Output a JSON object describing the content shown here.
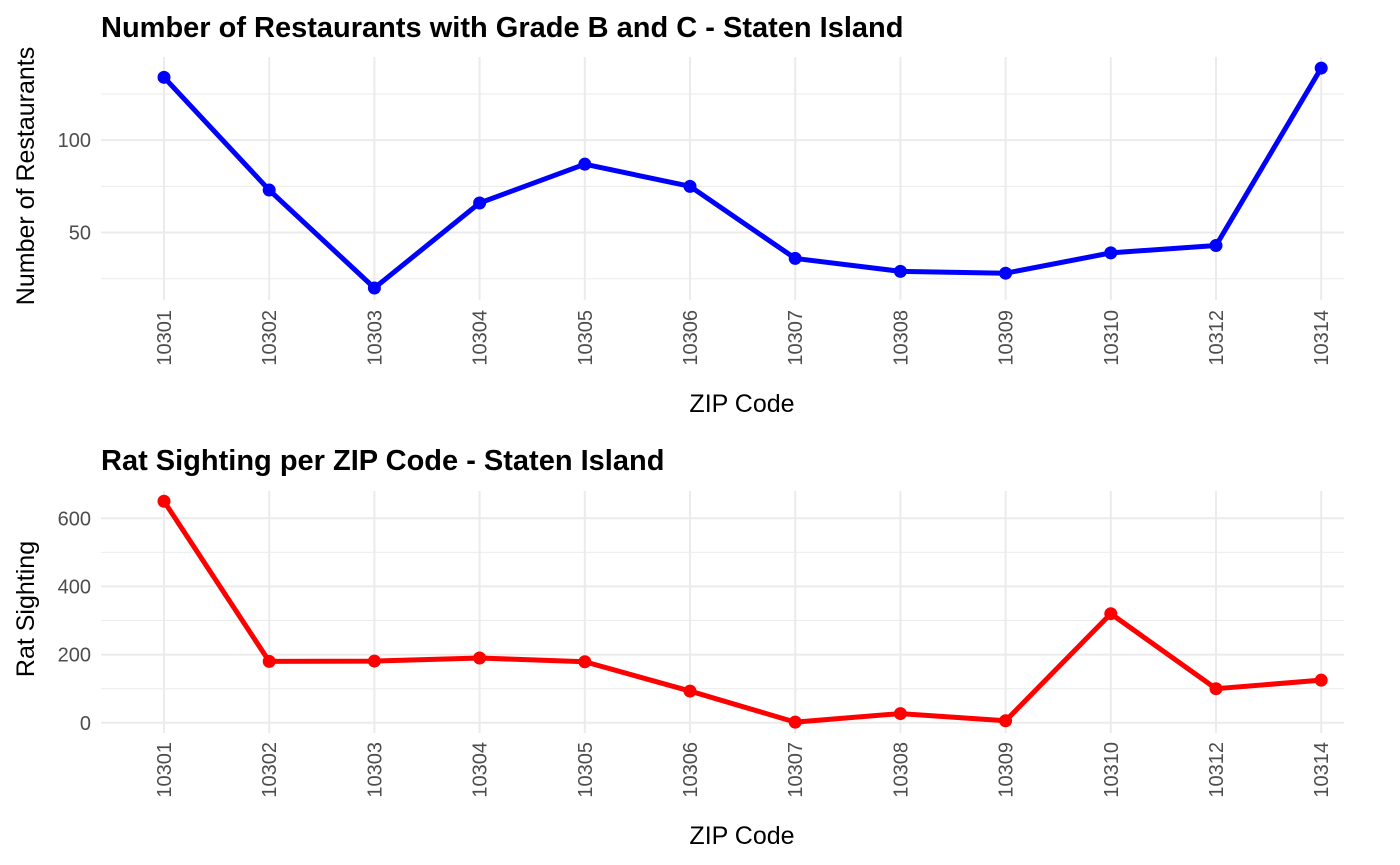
{
  "colors": {
    "panel1": "#0000ff",
    "panel2": "#ff0000",
    "grid": "#ebebeb",
    "tick": "#4d4d4d"
  },
  "chart_data": [
    {
      "type": "line",
      "title": "Number of Restaurants with Grade B and C - Staten Island",
      "xlabel": "ZIP Code",
      "ylabel": "Number of Restaurants",
      "categories": [
        "10301",
        "10302",
        "10303",
        "10304",
        "10305",
        "10306",
        "10307",
        "10308",
        "10309",
        "10310",
        "10312",
        "10314"
      ],
      "series": [
        {
          "values": [
            134,
            73,
            20,
            66,
            87,
            75,
            36,
            29,
            28,
            39,
            43,
            139
          ]
        }
      ],
      "yticks": [
        50,
        100
      ],
      "ylim": [
        13.5,
        145
      ],
      "grid": true
    },
    {
      "type": "line",
      "title": "Rat Sighting per ZIP Code - Staten Island",
      "xlabel": "ZIP Code",
      "ylabel": "Rat Sighting",
      "categories": [
        "10301",
        "10302",
        "10303",
        "10304",
        "10305",
        "10306",
        "10307",
        "10308",
        "10309",
        "10310",
        "10312",
        "10314"
      ],
      "series": [
        {
          "values": [
            650,
            180,
            181,
            190,
            179,
            93,
            2,
            27,
            6,
            320,
            100,
            125
          ]
        }
      ],
      "yticks": [
        0,
        200,
        400,
        600
      ],
      "ylim": [
        -30,
        680
      ],
      "grid": true
    }
  ]
}
